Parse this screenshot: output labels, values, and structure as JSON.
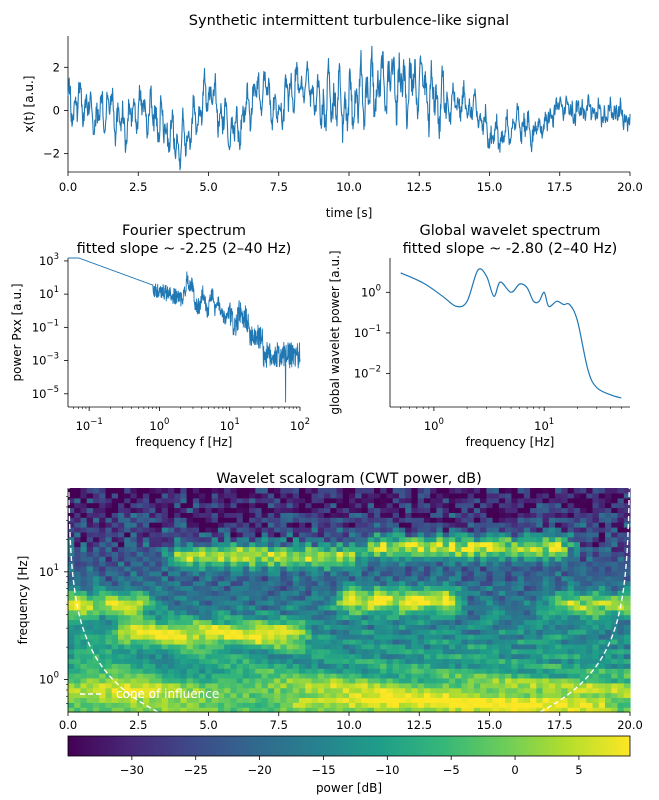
{
  "chart_data": [
    {
      "id": "signal",
      "type": "line",
      "title": "Synthetic intermittent turbulence-like signal",
      "xlabel": "time [s]",
      "ylabel": "x(t) [a.u.]",
      "xlim": [
        0,
        20
      ],
      "ylim": [
        -2.85,
        3.45
      ],
      "xticks": [
        0,
        2.5,
        5,
        7.5,
        10,
        12.5,
        15,
        17.5,
        20
      ],
      "xtick_labels": [
        "0.0",
        "2.5",
        "5.0",
        "7.5",
        "10.0",
        "12.5",
        "15.0",
        "17.5",
        "20.0"
      ],
      "yticks": [
        -2,
        0,
        2
      ],
      "ytick_labels": [
        "−2",
        "0",
        "2"
      ],
      "color": "#1f77b4",
      "grid": false,
      "series": [
        {
          "x": [
            0,
            0.5,
            1,
            1.5,
            2,
            2.5,
            3,
            3.5,
            4,
            4.5,
            5,
            5.5,
            6,
            6.5,
            7,
            7.5,
            8,
            8.5,
            9,
            9.5,
            10,
            10.5,
            11,
            11.5,
            12,
            12.5,
            13,
            13.5,
            14,
            14.5,
            15,
            15.5,
            16,
            16.5,
            17,
            17.5,
            18,
            18.5,
            19,
            19.5,
            20
          ],
          "y": [
            0.1,
            0.5,
            -0.4,
            0.3,
            -0.8,
            0.2,
            -0.2,
            -0.9,
            -1.6,
            -0.5,
            0.9,
            -0.4,
            -1.0,
            0.5,
            1.0,
            -0.2,
            1.1,
            1.3,
            0.2,
            0.6,
            0.1,
            0.8,
            1.0,
            1.4,
            1.1,
            1.2,
            0.6,
            0.2,
            0.4,
            0.1,
            -1.2,
            -1.1,
            -0.5,
            -1.0,
            -0.6,
            0.3,
            -0.1,
            0.1,
            -0.2,
            0.0,
            -0.5
          ]
        }
      ]
    },
    {
      "id": "fourier",
      "type": "line",
      "title": "Fourier spectrum",
      "subtitle": "fitted slope ~ -2.25 (2–40 Hz)",
      "xlabel": "frequency f [Hz]",
      "ylabel": "power Pxx [a.u.]",
      "xscale": "log",
      "yscale": "log",
      "xlim": [
        0.05,
        100
      ],
      "ylim": [
        1.6e-06,
        1500
      ],
      "xticks": [
        0.1,
        1,
        10,
        100
      ],
      "xtick_labels": [
        [
          "10",
          "−1"
        ],
        [
          "10",
          "0"
        ],
        [
          "10",
          "1"
        ],
        [
          "10",
          "2"
        ]
      ],
      "yticks": [
        1e-05,
        0.001,
        0.1,
        10,
        1000
      ],
      "ytick_labels": [
        [
          "10",
          "−5"
        ],
        [
          "10",
          "−3"
        ],
        [
          "10",
          "−1"
        ],
        [
          "10",
          "1"
        ],
        [
          "10",
          "3"
        ]
      ],
      "color": "#1f77b4",
      "series": [
        {
          "x": [
            0.05,
            0.1,
            0.2,
            0.5,
            1,
            2,
            2.5,
            3,
            4,
            5,
            6,
            8,
            10,
            15,
            20,
            30,
            50,
            100
          ],
          "y": [
            500,
            150,
            45,
            8,
            2,
            0.5,
            20,
            5,
            15,
            3,
            8,
            2,
            0.3,
            0.08,
            0.02,
            0.005,
            0.002,
            0.0012
          ]
        }
      ]
    },
    {
      "id": "global-wavelet",
      "type": "line",
      "title": "Global wavelet spectrum",
      "subtitle": "fitted slope ~ -2.80 (2–40 Hz)",
      "xlabel": "frequency [Hz]",
      "ylabel": "global wavelet power [a.u.]",
      "xscale": "log",
      "yscale": "log",
      "xlim": [
        0.4,
        60
      ],
      "ylim": [
        0.0015,
        7
      ],
      "xticks": [
        1,
        10
      ],
      "xtick_labels": [
        [
          "10",
          "0"
        ],
        [
          "10",
          "1"
        ]
      ],
      "yticks": [
        0.01,
        0.1,
        1
      ],
      "ytick_labels": [
        [
          "10",
          "−2"
        ],
        [
          "10",
          "−1"
        ],
        [
          "10",
          "0"
        ]
      ],
      "color": "#1f77b4",
      "series": [
        {
          "x": [
            0.5,
            0.8,
            1.2,
            1.6,
            2,
            2.5,
            3,
            3.5,
            4,
            5,
            6,
            7,
            8,
            9,
            10,
            11,
            13,
            15,
            17,
            20,
            25,
            30,
            40,
            50
          ],
          "y": [
            3,
            1.7,
            0.8,
            0.45,
            0.6,
            3.5,
            2.5,
            0.8,
            1.8,
            1.0,
            1.6,
            1.3,
            0.6,
            0.6,
            1.0,
            0.45,
            0.6,
            0.5,
            0.5,
            0.2,
            0.012,
            0.0045,
            0.003,
            0.0025
          ]
        }
      ]
    },
    {
      "id": "scalogram",
      "type": "heatmap",
      "title": "Wavelet scalogram (CWT power, dB)",
      "xlabel": "",
      "ylabel": "frequency [Hz]",
      "xlim": [
        0,
        20
      ],
      "yscale": "log",
      "ylim": [
        0.5,
        60
      ],
      "xticks": [
        0,
        2.5,
        5,
        7.5,
        10,
        12.5,
        15,
        17.5,
        20
      ],
      "xtick_labels": [
        "0.0",
        "2.5",
        "5.0",
        "7.5",
        "10.0",
        "12.5",
        "15.0",
        "17.5",
        "20.0"
      ],
      "yticks": [
        1,
        10
      ],
      "ytick_labels": [
        [
          "10",
          "0"
        ],
        [
          "10",
          "1"
        ]
      ],
      "colormap": "viridis",
      "legend": {
        "label": "cone of influence",
        "placement": "lower-left"
      },
      "bands": [
        {
          "t0": 0.0,
          "t1": 2.6,
          "f": 5.0,
          "fw": 1.3,
          "db": 5
        },
        {
          "t0": 2.0,
          "t1": 8.0,
          "f": 2.7,
          "fw": 1.3,
          "db": 8
        },
        {
          "t0": 4.0,
          "t1": 10.0,
          "f": 14.0,
          "fw": 1.25,
          "db": 3
        },
        {
          "t0": 10.0,
          "t1": 13.5,
          "f": 5.5,
          "fw": 1.3,
          "db": 7
        },
        {
          "t0": 11.0,
          "t1": 17.5,
          "f": 17.0,
          "fw": 1.2,
          "db": 5
        },
        {
          "t0": 17.5,
          "t1": 20.0,
          "f": 5.0,
          "fw": 1.25,
          "db": 2
        },
        {
          "t0": 8.0,
          "t1": 19.0,
          "f": 0.62,
          "fw": 1.2,
          "db": 8
        },
        {
          "t0": 0.0,
          "t1": 20.0,
          "f": 0.8,
          "fw": 1.3,
          "db": 2
        }
      ],
      "colorbar": {
        "label": "power [dB]",
        "range": [
          -35,
          9
        ],
        "ticks": [
          -30,
          -25,
          -20,
          -15,
          -10,
          -5,
          0,
          5
        ],
        "tick_labels": [
          "−30",
          "−25",
          "−20",
          "−15",
          "−10",
          "−5",
          "0",
          "5"
        ]
      }
    }
  ]
}
